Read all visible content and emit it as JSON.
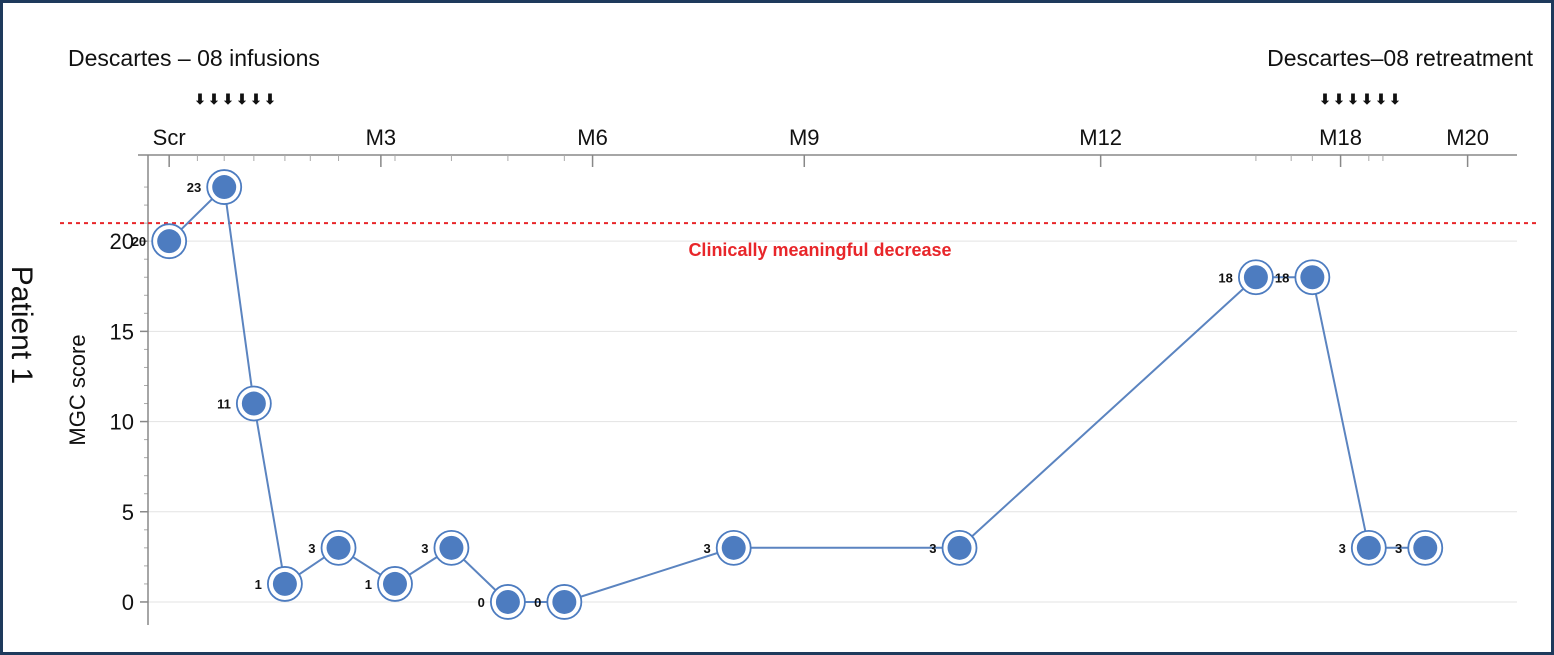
{
  "chart_data": {
    "type": "line",
    "side_label": "Patient 1",
    "ylabel": "MGC score",
    "ylim": [
      -1,
      24.5
    ],
    "y_ticks": [
      0,
      5,
      10,
      15,
      20
    ],
    "grid": "horizontal",
    "colors": {
      "line": "#5b84c0",
      "marker": "#4d7cc0",
      "reference": "#e8262a",
      "frame": "#1e3a5c"
    },
    "annotations": {
      "left": "Descartes – 08 infusions",
      "right": "Descartes–08 retreatment",
      "arrow_glyph": "⬇",
      "infusion_arrows": 6,
      "retreatment_arrows": 6
    },
    "timepoints": [
      "Scr",
      "M3",
      "M6",
      "M9",
      "M12",
      "M18",
      "M20"
    ],
    "reference_line": {
      "y": 21,
      "label": "Clinically meaningful decrease"
    },
    "series": [
      {
        "points": [
          {
            "x": 0.0,
            "y": 20,
            "label": "20"
          },
          {
            "x": 0.39,
            "y": 23,
            "label": "23"
          },
          {
            "x": 0.6,
            "y": 11,
            "label": "11"
          },
          {
            "x": 0.82,
            "y": 1,
            "label": "1"
          },
          {
            "x": 1.2,
            "y": 3,
            "label": "3"
          },
          {
            "x": 1.6,
            "y": 1,
            "label": "1"
          },
          {
            "x": 2.0,
            "y": 3,
            "label": "3"
          },
          {
            "x": 2.4,
            "y": 0,
            "label": "0"
          },
          {
            "x": 2.8,
            "y": 0,
            "label": "0"
          },
          {
            "x": 4.0,
            "y": 3,
            "label": "3"
          },
          {
            "x": 5.6,
            "y": 3,
            "label": "3"
          },
          {
            "x": 7.7,
            "y": 18,
            "label": "18"
          },
          {
            "x": 8.1,
            "y": 18,
            "label": "18"
          },
          {
            "x": 8.5,
            "y": 3,
            "label": "3"
          },
          {
            "x": 8.9,
            "y": 3,
            "label": "3"
          }
        ]
      }
    ]
  }
}
